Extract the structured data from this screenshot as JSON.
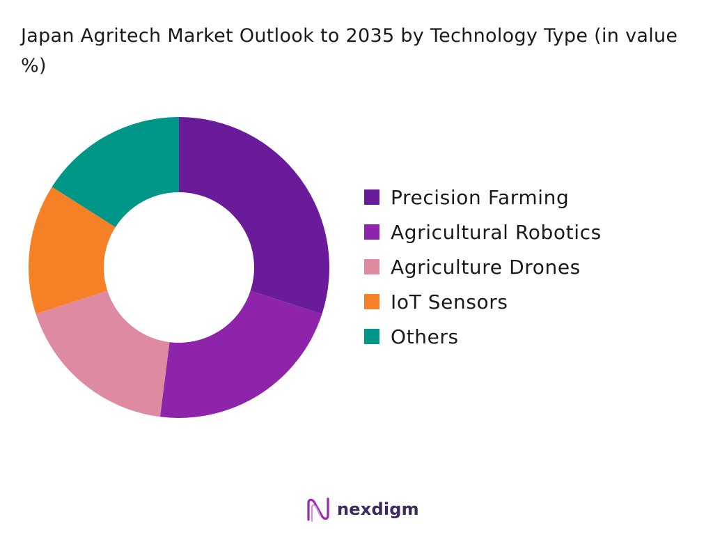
{
  "chart_data": {
    "type": "pie",
    "title": "Japan Agritech Market Outlook to 2035 by Technology Type (in value %)",
    "donut": true,
    "legend_position": "right",
    "categories": [
      "Precision Farming",
      "Agricultural Robotics",
      "Agriculture Drones",
      "IoT Sensors",
      "Others"
    ],
    "values": [
      30,
      22,
      18,
      14,
      16
    ],
    "colors": [
      "#6a1b9a",
      "#8e24aa",
      "#de8ba2",
      "#f58025",
      "#009688"
    ]
  },
  "brand": {
    "name": "nexdigm",
    "logo_icon": "nexdigm-wave-logo-icon",
    "logo_color": "#9c27b0"
  }
}
